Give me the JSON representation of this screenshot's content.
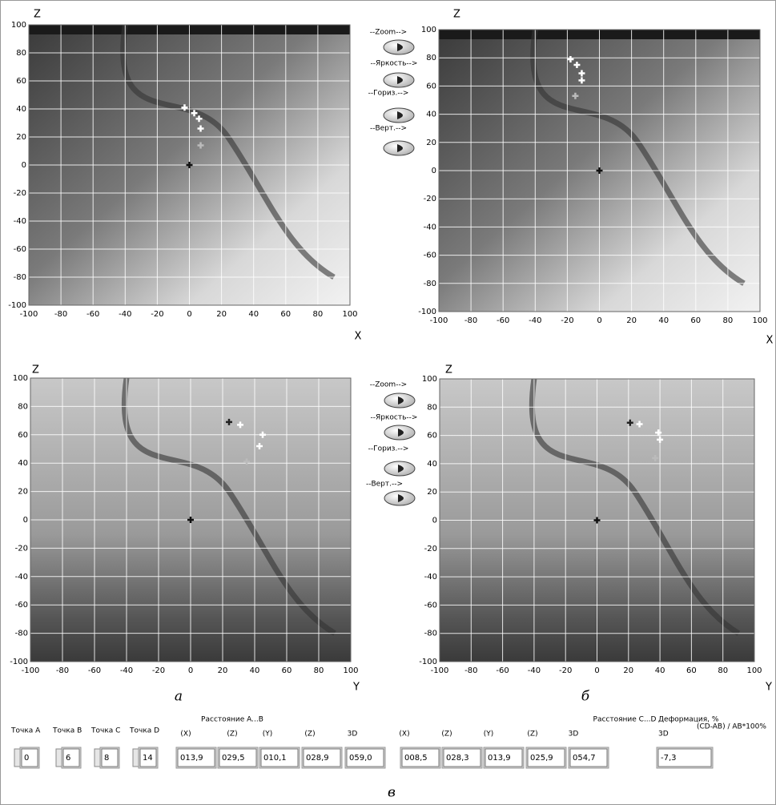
{
  "plots": [
    {
      "y_label": "Z",
      "x_label": "X",
      "xlim": [
        -100,
        100
      ],
      "ylim": [
        -100,
        100
      ],
      "xticks": [
        -100,
        -80,
        -60,
        -40,
        -20,
        0,
        20,
        40,
        60,
        80,
        100
      ],
      "yticks": [
        -100,
        -80,
        -60,
        -40,
        -20,
        0,
        20,
        40,
        60,
        80,
        100
      ],
      "marker_x": [
        -3,
        3,
        6,
        7,
        7,
        0
      ],
      "marker_y": [
        41,
        37,
        33,
        26,
        14,
        0
      ],
      "marker_color": [
        "#ffffff",
        "#ffffff",
        "#ffffff",
        "#ffffff",
        "#bbbbbb",
        "#111111"
      ]
    },
    {
      "y_label": "Z",
      "x_label": "X",
      "xlim": [
        -100,
        100
      ],
      "ylim": [
        -100,
        100
      ],
      "xticks": [
        -100,
        -80,
        -60,
        -40,
        -20,
        0,
        20,
        40,
        60,
        80,
        100
      ],
      "yticks": [
        -100,
        -80,
        -60,
        -40,
        -20,
        0,
        20,
        40,
        60,
        80,
        100
      ],
      "marker_x": [
        -18,
        -14,
        -11,
        -11,
        -15,
        0
      ],
      "marker_y": [
        79,
        75,
        69,
        64,
        53,
        0
      ],
      "marker_color": [
        "#ffffff",
        "#ffffff",
        "#ffffff",
        "#ffffff",
        "#bbbbbb",
        "#111111"
      ]
    },
    {
      "y_label": "Z",
      "x_label": "Y",
      "xlim": [
        -100,
        100
      ],
      "ylim": [
        -100,
        100
      ],
      "xticks": [
        -100,
        -80,
        -60,
        -40,
        -20,
        0,
        20,
        40,
        60,
        80,
        100
      ],
      "yticks": [
        -100,
        -80,
        -60,
        -40,
        -20,
        0,
        20,
        40,
        60,
        80,
        100
      ],
      "marker_x": [
        24,
        31,
        45,
        43,
        35,
        0
      ],
      "marker_y": [
        69,
        67,
        60,
        52,
        41,
        0
      ],
      "marker_color": [
        "#222222",
        "#ffffff",
        "#ffffff",
        "#ffffff",
        "#bbbbbb",
        "#111111"
      ]
    },
    {
      "y_label": "Z",
      "x_label": "Y",
      "xlim": [
        -100,
        100
      ],
      "ylim": [
        -100,
        100
      ],
      "xticks": [
        -100,
        -80,
        -60,
        -40,
        -20,
        0,
        20,
        40,
        60,
        80,
        100
      ],
      "yticks": [
        -100,
        -80,
        -60,
        -40,
        -20,
        0,
        20,
        40,
        60,
        80,
        100
      ],
      "marker_x": [
        21,
        27,
        39,
        40,
        37,
        0
      ],
      "marker_y": [
        69,
        68,
        62,
        57,
        44,
        0
      ],
      "marker_color": [
        "#222222",
        "#ffffff",
        "#ffffff",
        "#ffffff",
        "#bbbbbb",
        "#111111"
      ]
    }
  ],
  "controls": [
    {
      "buttons": [
        "--Zoom-->",
        "--Яркость-->",
        "--Гориз.-->",
        "--Верт.-->"
      ]
    },
    {
      "buttons": [
        "--Zoom-->",
        "--Яркость-->",
        "--Гориз.-->",
        "--Верт.-->"
      ]
    }
  ],
  "captions": [
    "а",
    "б",
    "в"
  ],
  "points": {
    "labels": [
      "Точка A",
      "Точка B",
      "Точка C",
      "Точка D"
    ],
    "values": [
      "0",
      "6",
      "8",
      "14"
    ]
  },
  "distance_ab": {
    "title": "Расстояние A...B",
    "headers": [
      "(X)",
      "(Z)",
      "(Y)",
      "(Z)",
      "3D"
    ],
    "values": [
      "013,9",
      "029,5",
      "010,1",
      "028,9",
      "059,0"
    ]
  },
  "distance_cd": {
    "title": "Расстояние C...D",
    "headers": [
      "(X)",
      "(Z)",
      "(Y)",
      "(Z)",
      "3D"
    ],
    "values": [
      "008,5",
      "028,3",
      "013,9",
      "025,9",
      "054,7"
    ]
  },
  "deformation": {
    "title": "Деформация, %",
    "formula": "(CD-AB) / AB*100%",
    "header": "3D",
    "value": "-7,3"
  }
}
